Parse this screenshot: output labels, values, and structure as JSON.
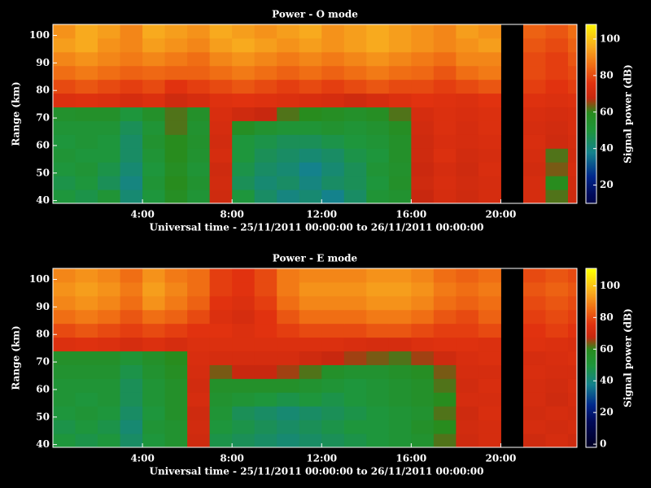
{
  "chart_data": [
    {
      "type": "heatmap",
      "title": "Power - O mode",
      "x_label": "Universal time - 25/11/2011 00:00:00 to 26/11/2011 00:00:00",
      "y_label": "Range (km)",
      "colorbar_label": "Signal power (dB)",
      "xlim": [
        0,
        23.4
      ],
      "xticks": [
        {
          "value": 4,
          "label": "4:00"
        },
        {
          "value": 8,
          "label": "8:00"
        },
        {
          "value": 12,
          "label": "12:00"
        },
        {
          "value": 16,
          "label": "16:00"
        },
        {
          "value": 20,
          "label": "20:00"
        }
      ],
      "ylim": [
        39,
        104
      ],
      "yticks": [
        40,
        50,
        60,
        70,
        80,
        90,
        100
      ],
      "clim": [
        10,
        108
      ],
      "cticks": [
        20,
        40,
        60,
        80,
        100
      ],
      "x_edges": [
        0,
        1,
        2,
        3,
        4,
        5,
        6,
        7,
        8,
        9,
        10,
        11,
        12,
        13,
        14,
        15,
        16,
        17,
        18,
        19,
        20,
        21,
        22,
        23,
        23.4
      ],
      "y_edges": [
        39,
        44,
        49,
        54,
        59,
        64,
        69,
        74,
        79,
        84,
        89,
        94,
        99,
        104
      ],
      "z": [
        [
          50,
          48,
          52,
          42,
          50,
          58,
          52,
          70,
          50,
          44,
          40,
          42,
          38,
          44,
          52,
          54,
          68,
          72,
          70,
          72,
          null,
          72,
          62,
          70
        ],
        [
          48,
          50,
          46,
          40,
          52,
          60,
          54,
          71,
          46,
          42,
          44,
          40,
          44,
          46,
          50,
          56,
          70,
          73,
          71,
          72,
          null,
          72,
          60,
          71
        ],
        [
          50,
          52,
          48,
          42,
          50,
          58,
          52,
          70,
          48,
          44,
          42,
          38,
          42,
          46,
          52,
          55,
          69,
          72,
          70,
          73,
          null,
          71,
          64,
          72
        ],
        [
          52,
          50,
          50,
          44,
          52,
          60,
          54,
          72,
          50,
          46,
          44,
          42,
          44,
          48,
          50,
          56,
          70,
          74,
          71,
          72,
          null,
          72,
          62,
          71
        ],
        [
          50,
          52,
          50,
          44,
          54,
          60,
          55,
          71,
          50,
          48,
          46,
          46,
          48,
          50,
          52,
          56,
          70,
          73,
          72,
          73,
          null,
          73,
          70,
          72
        ],
        [
          52,
          52,
          52,
          46,
          52,
          62,
          54,
          72,
          58,
          54,
          52,
          52,
          54,
          52,
          54,
          58,
          71,
          74,
          72,
          74,
          null,
          72,
          71,
          73
        ],
        [
          55,
          56,
          56,
          50,
          56,
          62,
          56,
          73,
          70,
          68,
          62,
          60,
          58,
          56,
          58,
          62,
          72,
          74,
          73,
          74,
          null,
          73,
          72,
          73
        ],
        [
          74,
          75,
          74,
          72,
          74,
          70,
          72,
          75,
          76,
          75,
          74,
          73,
          72,
          70,
          72,
          74,
          76,
          75,
          74,
          76,
          null,
          75,
          74,
          75
        ],
        [
          80,
          82,
          80,
          78,
          80,
          76,
          78,
          80,
          82,
          80,
          78,
          80,
          78,
          80,
          82,
          80,
          80,
          78,
          80,
          82,
          null,
          78,
          76,
          78
        ],
        [
          86,
          88,
          86,
          84,
          85,
          84,
          84,
          86,
          88,
          86,
          84,
          86,
          84,
          86,
          88,
          86,
          85,
          82,
          86,
          88,
          null,
          80,
          78,
          80
        ],
        [
          90,
          92,
          90,
          88,
          90,
          88,
          86,
          90,
          92,
          90,
          88,
          90,
          88,
          90,
          92,
          90,
          88,
          86,
          90,
          90,
          null,
          80,
          78,
          82
        ],
        [
          94,
          96,
          92,
          90,
          94,
          92,
          90,
          94,
          96,
          94,
          92,
          94,
          92,
          94,
          96,
          94,
          92,
          90,
          92,
          94,
          null,
          82,
          80,
          84
        ],
        [
          92,
          96,
          94,
          90,
          96,
          94,
          92,
          96,
          94,
          92,
          94,
          96,
          92,
          94,
          96,
          94,
          92,
          90,
          94,
          92,
          null,
          84,
          82,
          86
        ]
      ]
    },
    {
      "type": "heatmap",
      "title": "Power - E mode",
      "x_label": "Universal time - 25/11/2011 00:00:00 to 26/11/2011 00:00:00",
      "y_label": "Range (km)",
      "colorbar_label": "Signal power (dB)",
      "xlim": [
        0,
        23.4
      ],
      "xticks": [
        {
          "value": 4,
          "label": "4:00"
        },
        {
          "value": 8,
          "label": "8:00"
        },
        {
          "value": 12,
          "label": "12:00"
        },
        {
          "value": 16,
          "label": "16:00"
        },
        {
          "value": 20,
          "label": "20:00"
        }
      ],
      "ylim": [
        39,
        104
      ],
      "yticks": [
        40,
        50,
        60,
        70,
        80,
        90,
        100
      ],
      "clim": [
        -2,
        111
      ],
      "cticks": [
        0,
        20,
        40,
        60,
        80,
        100
      ],
      "x_edges": [
        0,
        1,
        2,
        3,
        4,
        5,
        6,
        7,
        8,
        9,
        10,
        11,
        12,
        13,
        14,
        15,
        16,
        17,
        18,
        19,
        20,
        21,
        22,
        23,
        23.4
      ],
      "y_edges": [
        39,
        44,
        49,
        54,
        59,
        64,
        69,
        74,
        79,
        84,
        89,
        94,
        99,
        104
      ],
      "z": [
        [
          50,
          48,
          50,
          44,
          50,
          54,
          70,
          48,
          46,
          44,
          42,
          44,
          46,
          48,
          50,
          52,
          54,
          62,
          70,
          72,
          null,
          70,
          72,
          70
        ],
        [
          48,
          50,
          48,
          42,
          52,
          54,
          71,
          50,
          48,
          46,
          44,
          46,
          48,
          50,
          50,
          52,
          56,
          60,
          71,
          72,
          null,
          72,
          71,
          72
        ],
        [
          50,
          52,
          50,
          44,
          50,
          56,
          70,
          52,
          46,
          44,
          42,
          44,
          46,
          48,
          50,
          52,
          54,
          62,
          70,
          73,
          null,
          71,
          72,
          71
        ],
        [
          52,
          50,
          52,
          46,
          52,
          56,
          72,
          54,
          52,
          50,
          48,
          50,
          48,
          50,
          52,
          54,
          56,
          60,
          72,
          72,
          null,
          72,
          70,
          72
        ],
        [
          52,
          52,
          52,
          46,
          52,
          56,
          71,
          56,
          56,
          56,
          56,
          54,
          52,
          50,
          52,
          54,
          56,
          62,
          71,
          73,
          null,
          72,
          71,
          73
        ],
        [
          54,
          54,
          54,
          48,
          54,
          58,
          72,
          64,
          68,
          68,
          66,
          62,
          56,
          54,
          54,
          56,
          58,
          64,
          72,
          72,
          null,
          73,
          72,
          72
        ],
        [
          56,
          56,
          56,
          52,
          56,
          60,
          73,
          72,
          72,
          72,
          72,
          70,
          68,
          66,
          64,
          62,
          66,
          70,
          73,
          74,
          null,
          72,
          73,
          74
        ],
        [
          74,
          75,
          74,
          72,
          74,
          72,
          74,
          74,
          74,
          74,
          74,
          74,
          74,
          73,
          72,
          72,
          74,
          75,
          75,
          74,
          null,
          75,
          74,
          73
        ],
        [
          80,
          82,
          80,
          78,
          80,
          78,
          76,
          76,
          74,
          76,
          78,
          80,
          80,
          80,
          82,
          82,
          80,
          78,
          78,
          80,
          null,
          76,
          78,
          76
        ],
        [
          86,
          88,
          86,
          82,
          86,
          84,
          80,
          74,
          72,
          76,
          82,
          86,
          86,
          86,
          88,
          88,
          86,
          82,
          80,
          84,
          null,
          78,
          80,
          78
        ],
        [
          90,
          92,
          90,
          86,
          92,
          88,
          84,
          76,
          74,
          78,
          86,
          90,
          90,
          90,
          92,
          92,
          90,
          86,
          84,
          86,
          null,
          80,
          82,
          80
        ],
        [
          92,
          94,
          92,
          88,
          94,
          90,
          86,
          78,
          76,
          80,
          88,
          92,
          92,
          92,
          94,
          94,
          92,
          88,
          86,
          88,
          null,
          82,
          84,
          82
        ],
        [
          90,
          92,
          90,
          86,
          92,
          88,
          86,
          78,
          76,
          80,
          88,
          90,
          90,
          90,
          92,
          92,
          90,
          86,
          84,
          86,
          null,
          80,
          82,
          80
        ]
      ]
    }
  ]
}
